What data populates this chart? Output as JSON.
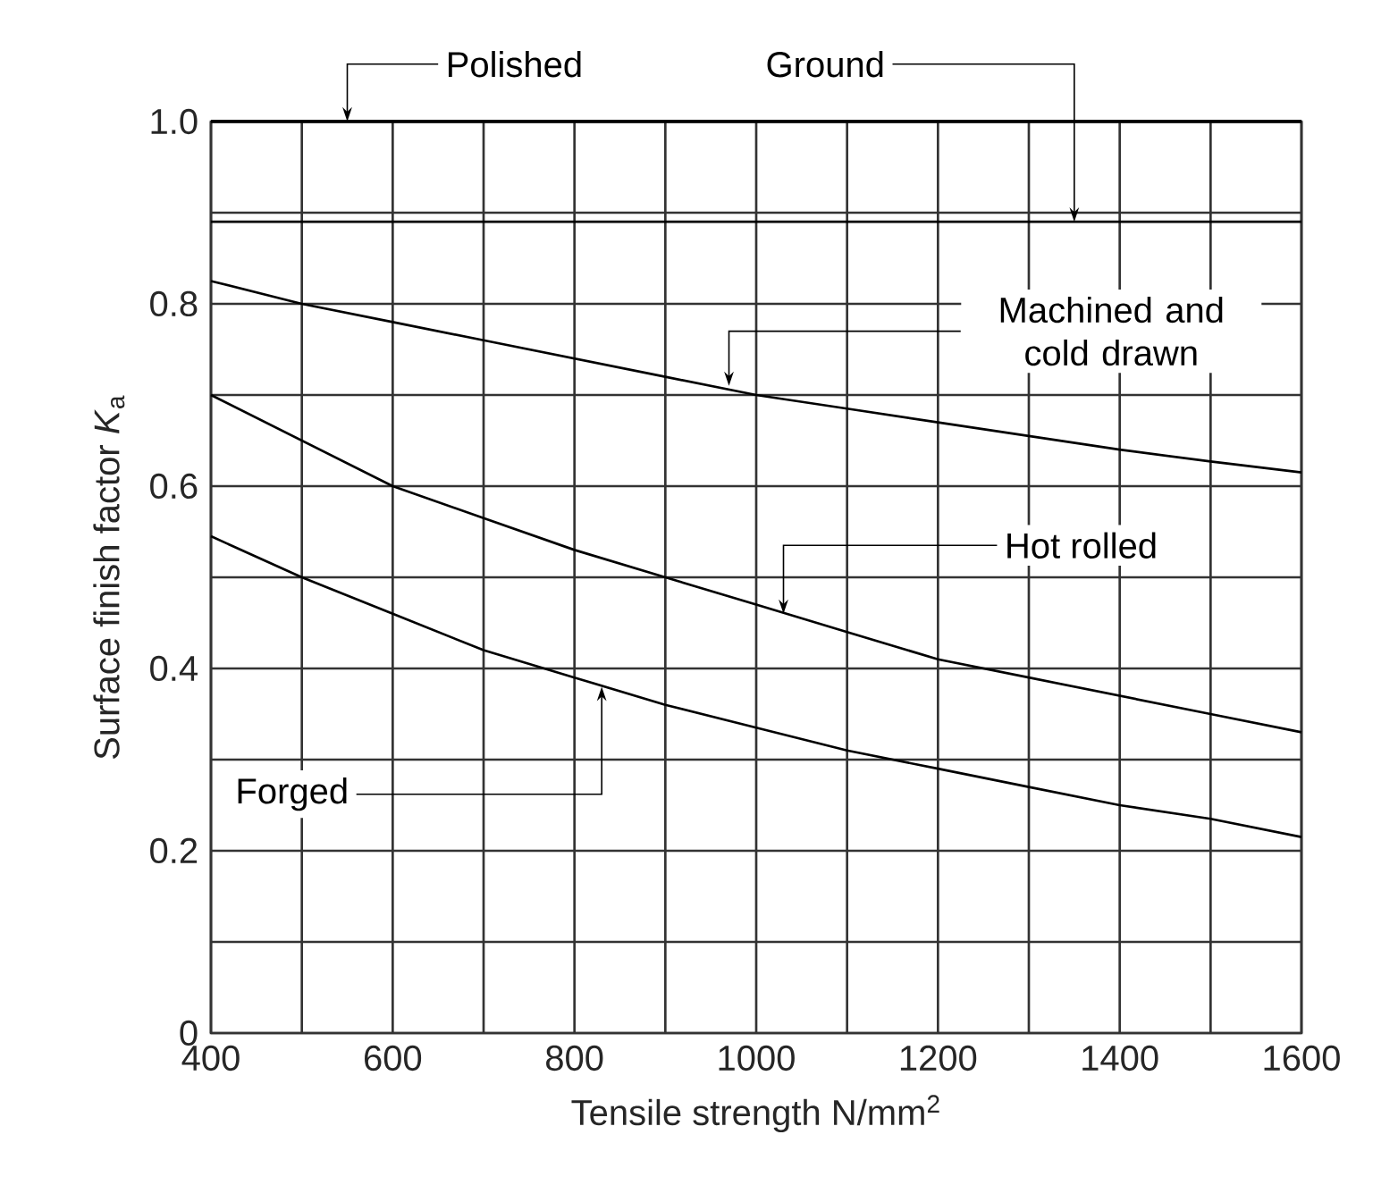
{
  "chart_data": {
    "type": "line",
    "xlabel": "Tensile strength N/mm$^{2}$",
    "ylabel": "Surface finish factor *K*$_{a}$",
    "x": [
      400,
      500,
      600,
      700,
      800,
      900,
      1000,
      1100,
      1200,
      1300,
      1400,
      1500,
      1600
    ],
    "series": [
      {
        "color": "#000000",
        "x": [
          400,
          1600
        ],
        "values": [
          0.89,
          0.89
        ]
      },
      {
        "color": "#000000",
        "values": [
          0.825,
          0.8,
          0.78,
          0.76,
          0.74,
          0.72,
          0.7,
          0.685,
          0.67,
          0.655,
          0.64,
          0.627,
          0.615
        ]
      },
      {
        "color": "#000000",
        "values": [
          0.7,
          0.65,
          0.6,
          0.565,
          0.53,
          0.5,
          0.47,
          0.44,
          0.41,
          0.39,
          0.37,
          0.35,
          0.33
        ]
      },
      {
        "color": "#000000",
        "values": [
          0.545,
          0.5,
          0.46,
          0.42,
          0.39,
          0.36,
          0.335,
          0.31,
          0.29,
          0.27,
          0.25,
          0.235,
          0.215
        ]
      }
    ],
    "annotations": [
      {
        "text": "Ground",
        "x": 1350,
        "y": 0.89
      },
      {
        "text": "Machined and cold drawn",
        "x": 970,
        "y": 0.71
      },
      {
        "text": "Hot rolled",
        "x": 1030,
        "y": 0.46
      },
      {
        "text": "Forged",
        "x": 830,
        "y": 0.38
      }
    ],
    "xlim": [
      400,
      1600
    ],
    "ylim": [
      0,
      1.0
    ],
    "xticks": [
      400,
      {
        "value": 500,
        "label": null
      },
      600,
      {
        "value": 700,
        "label": null
      },
      800,
      {
        "value": 900,
        "label": null
      },
      1000,
      {
        "value": 1100,
        "label": null
      },
      1200,
      {
        "value": 1300,
        "label": null
      },
      1400,
      {
        "value": 1500,
        "label": null
      },
      1600
    ],
    "yticks": [
      0,
      {
        "value": 0.1,
        "label": null
      },
      0.2,
      {
        "value": 0.3,
        "label": null
      },
      0.4,
      {
        "value": 0.5,
        "label": null
      },
      0.6,
      {
        "value": 0.7,
        "label": null
      },
      0.8,
      {
        "value": 0.9,
        "label": null
      },
      {
        "value": 1,
        "label": "1.0"
      }
    ],
    "ref_lines": [
      {
        "axis": "y",
        "value": 1.0,
        "label": "Polished"
      }
    ],
    "grid": true,
    "marker": "none",
    "line_style": "solid"
  }
}
